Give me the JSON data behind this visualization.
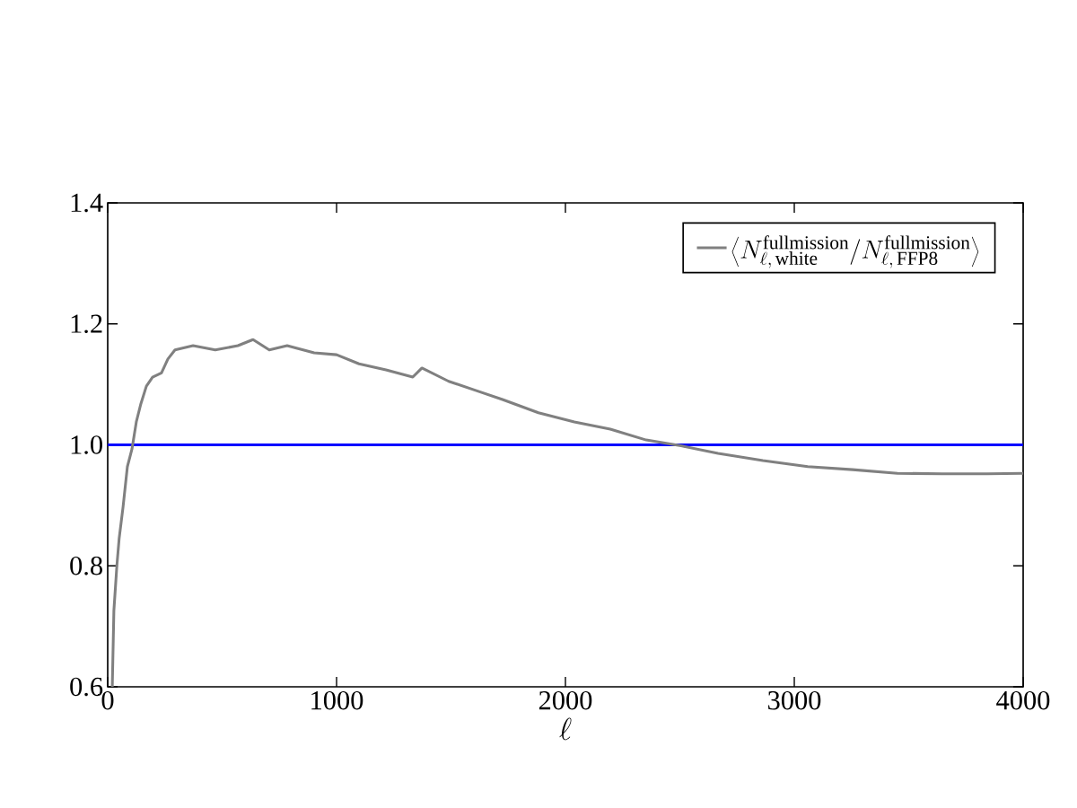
{
  "chart_data": {
    "type": "line",
    "xlabel": "\\ell",
    "xlim": [
      0,
      4000
    ],
    "ylim": [
      0.6,
      1.4
    ],
    "xticks": [
      0,
      1000,
      2000,
      3000,
      4000
    ],
    "yticks": [
      0.6,
      0.8,
      {
        "value": 1.0,
        "label": "1.0"
      },
      1.2,
      1.4
    ],
    "grid": false,
    "legend": "top right",
    "marker": "none",
    "line_style": "solid",
    "ref_lines": [
      {
        "axis": "y",
        "value": 1.0,
        "color": "#0000ff"
      }
    ],
    "series": [
      {
        "name": "\\left\\langle N_{\\ell,\\,\\mathrm{white}}^{\\mathrm{fullmission}}/N_{\\ell,\\,\\mathrm{FFP8}}^{\\mathrm{fullmission}}\\right\\rangle",
        "color": "#808080",
        "x": [
          20,
          27,
          40,
          50,
          67,
          86,
          106,
          125,
          145,
          169,
          196,
          235,
          263,
          294,
          373,
          470,
          569,
          635,
          706,
          784,
          902,
          1000,
          1098,
          1216,
          1333,
          1373,
          1490,
          1608,
          1725,
          1882,
          2039,
          2196,
          2353,
          2510,
          2667,
          2863,
          3059,
          3255,
          3451,
          3647,
          3843,
          4000
        ],
        "values": [
          0.6,
          0.726,
          0.8,
          0.845,
          0.897,
          0.964,
          0.993,
          1.038,
          1.068,
          1.097,
          1.112,
          1.119,
          1.142,
          1.157,
          1.164,
          1.157,
          1.164,
          1.174,
          1.157,
          1.164,
          1.152,
          1.149,
          1.134,
          1.124,
          1.112,
          1.127,
          1.105,
          1.09,
          1.075,
          1.053,
          1.038,
          1.026,
          1.008,
          0.998,
          0.986,
          0.974,
          0.964,
          0.959,
          0.953,
          0.952,
          0.952,
          0.953
        ]
      }
    ]
  }
}
